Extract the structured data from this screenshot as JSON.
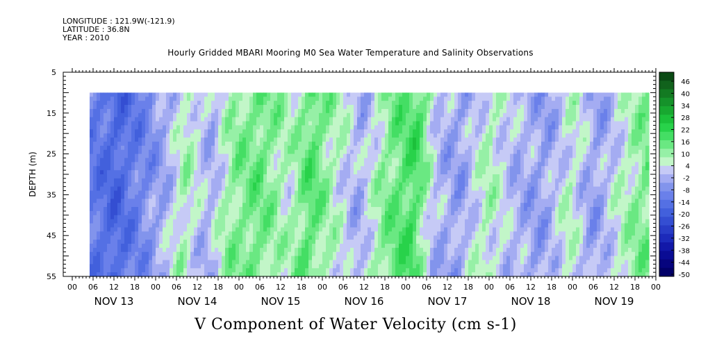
{
  "header": {
    "longitude": "LONGITUDE : 121.9W(-121.9)",
    "latitude": "LATITUDE : 36.8N",
    "year": "YEAR : 2010"
  },
  "chart_data": {
    "type": "heatmap",
    "title": "Hourly Gridded MBARI Mooring M0 Sea Water Temperature and Salinity Observations",
    "xlabel": "V Component of Water Velocity (cm s-1)",
    "ylabel": "DEPTH (m)",
    "ylim": [
      5,
      55
    ],
    "y_inverted": true,
    "y_ticks": [
      "5",
      "15",
      "25",
      "35",
      "45",
      "55"
    ],
    "x_hour_ticks": [
      "00",
      "06",
      "12",
      "18",
      "00",
      "06",
      "12",
      "18",
      "00",
      "06",
      "12",
      "18",
      "00",
      "06",
      "12",
      "18",
      "00",
      "06",
      "12",
      "18",
      "00",
      "06",
      "12",
      "18",
      "00",
      "06",
      "12",
      "18",
      "00"
    ],
    "x_day_labels": [
      "NOV 13",
      "NOV 14",
      "NOV 15",
      "NOV 16",
      "NOV 17",
      "NOV 18",
      "NOV 19"
    ],
    "data_start_hour": 5,
    "data_end_hour": 166,
    "data_top_depth": 10,
    "colorbar": {
      "labels": [
        "46",
        "40",
        "34",
        "28",
        "22",
        "16",
        "10",
        "4",
        "-2",
        "-8",
        "-14",
        "-20",
        "-26",
        "-32",
        "-38",
        "-44",
        "-50"
      ],
      "colors": [
        "#0a4a14",
        "#11621c",
        "#137a22",
        "#15922a",
        "#18a830",
        "#1cc03a",
        "#28d24a",
        "#44de64",
        "#6ae882",
        "#96f0a6",
        "#c2f6c8",
        "#c6caf6",
        "#a4acf2",
        "#8294ec",
        "#6a80ea",
        "#5470e4",
        "#4260dc",
        "#344ed2",
        "#283cc6",
        "#1c2aba",
        "#1218a8",
        "#0a0c94",
        "#06047e",
        "#020068"
      ]
    },
    "vmin": -50,
    "vmax": 46,
    "time_profile": [
      {
        "hour": 5,
        "value": -12
      },
      {
        "hour": 14,
        "value": -18
      },
      {
        "hour": 22,
        "value": -10
      },
      {
        "hour": 28,
        "value": -4
      },
      {
        "hour": 34,
        "value": 6
      },
      {
        "hour": 41,
        "value": -4
      },
      {
        "hour": 47,
        "value": 8
      },
      {
        "hour": 55,
        "value": 12
      },
      {
        "hour": 64,
        "value": 4
      },
      {
        "hour": 70,
        "value": 14
      },
      {
        "hour": 76,
        "value": 6
      },
      {
        "hour": 84,
        "value": -4
      },
      {
        "hour": 92,
        "value": 10
      },
      {
        "hour": 100,
        "value": 16
      },
      {
        "hour": 106,
        "value": -2
      },
      {
        "hour": 113,
        "value": -6
      },
      {
        "hour": 121,
        "value": 6
      },
      {
        "hour": 128,
        "value": -2
      },
      {
        "hour": 137,
        "value": -6
      },
      {
        "hour": 145,
        "value": 4
      },
      {
        "hour": 152,
        "value": -6
      },
      {
        "hour": 160,
        "value": 4
      },
      {
        "hour": 166,
        "value": 10
      }
    ]
  }
}
